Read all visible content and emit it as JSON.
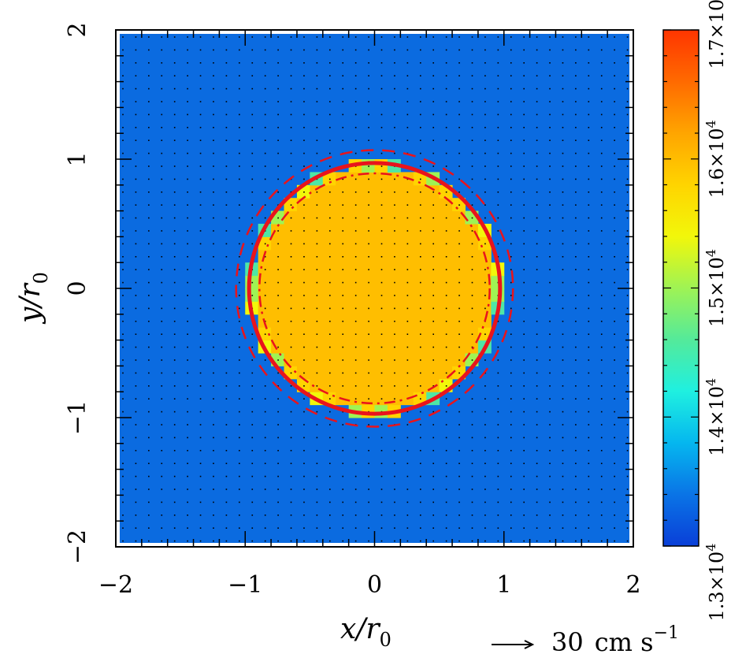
{
  "chart_data": {
    "type": "heatmap",
    "xlabel": "x/r",
    "xlabel_sub": "0",
    "ylabel": "y/r",
    "ylabel_sub": "0",
    "xlim": [
      -2,
      2
    ],
    "ylim": [
      -2,
      2
    ],
    "x_ticks": [
      -2,
      -1,
      0,
      1,
      2
    ],
    "y_ticks": [
      -2,
      -1,
      0,
      1,
      2
    ],
    "x_tick_labels": [
      "−2",
      "−1",
      "0",
      "1",
      "2"
    ],
    "y_tick_labels": [
      "−2",
      "−1",
      "0",
      "1",
      "2"
    ],
    "background_value": 13200,
    "disk": {
      "center": [
        0,
        0
      ],
      "radius": 0.95,
      "value": 16100
    },
    "contours": [
      {
        "style": "solid",
        "radius": 0.97,
        "color": "#e8141c"
      },
      {
        "style": "dashed",
        "radius": 1.07,
        "color": "#e8141c"
      },
      {
        "style": "dash-dot",
        "radius": 0.89,
        "color": "#e8141c"
      }
    ],
    "colorbar": {
      "min": 13000,
      "max": 17000,
      "tick_values": [
        13000,
        14000,
        15000,
        16000,
        17000
      ],
      "tick_labels": [
        "1.3×10",
        "1.4×10",
        "1.5×10",
        "1.6×10",
        "1.7×10"
      ],
      "tick_exponent": "4",
      "colors": [
        "#0a3fd8",
        "#0a74e6",
        "#05b7ef",
        "#1ff0e0",
        "#54ea9a",
        "#9ff354",
        "#f2f70a",
        "#ffd400",
        "#ffa500",
        "#ff6a00",
        "#ff3500"
      ]
    },
    "vector_legend": {
      "value": "30",
      "unit": "cm s",
      "unit_exponent": "−1"
    },
    "colors": {
      "background": "#0b6be0",
      "disk": "#ffbe00",
      "edge_cells": [
        "#ffd400",
        "#f2f70a",
        "#9ff354",
        "#4fe6a5"
      ]
    }
  }
}
